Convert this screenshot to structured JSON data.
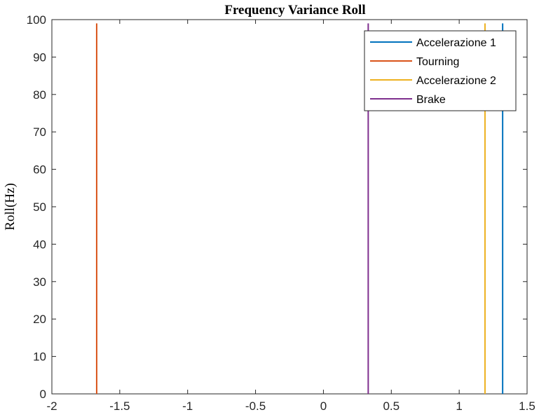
{
  "chart_data": {
    "type": "line",
    "title": "Frequency Variance Roll",
    "xlabel": "",
    "ylabel": "Roll(Hz)",
    "xlim": [
      -2,
      1.5
    ],
    "ylim": [
      0,
      100
    ],
    "xticks": [
      -2,
      -1.5,
      -1,
      -0.5,
      0,
      0.5,
      1,
      1.5
    ],
    "xtick_labels": [
      "-2",
      "-1.5",
      "-1",
      "-0.5",
      "0",
      "0.5",
      "1",
      "1.5"
    ],
    "yticks": [
      0,
      10,
      20,
      30,
      40,
      50,
      60,
      70,
      80,
      90,
      100
    ],
    "ytick_labels": [
      "0",
      "10",
      "20",
      "30",
      "40",
      "50",
      "60",
      "70",
      "80",
      "90",
      "100"
    ],
    "grid": false,
    "legend_position": "top-right",
    "series": [
      {
        "name": "Accelerazione 1",
        "color": "#0072BD",
        "x": [
          1.32,
          1.32
        ],
        "y": [
          0,
          99
        ]
      },
      {
        "name": "Tourning",
        "color": "#D95319",
        "x": [
          -1.67,
          -1.67
        ],
        "y": [
          0,
          99
        ]
      },
      {
        "name": "Accelerazione 2",
        "color": "#EDB120",
        "x": [
          1.19,
          1.19
        ],
        "y": [
          0,
          99
        ]
      },
      {
        "name": "Brake",
        "color": "#7E2F8E",
        "x": [
          0.33,
          0.33
        ],
        "y": [
          0,
          99
        ]
      }
    ]
  }
}
